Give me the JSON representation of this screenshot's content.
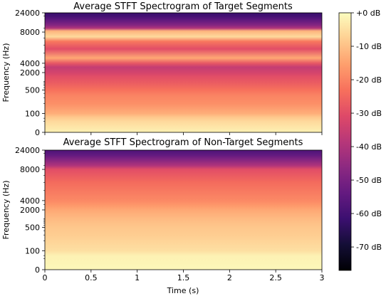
{
  "chart_data": [
    {
      "type": "heatmap",
      "title": "Average STFT Spectrogram of Target Segments",
      "xlabel": "",
      "ylabel": "Frequency (Hz)",
      "xlim": [
        0,
        3
      ],
      "ylim": [
        0,
        24000
      ],
      "y_scale": "symlog",
      "x_ticks": [],
      "y_ticks": [
        "0",
        "100",
        "500",
        "2000",
        "4000",
        "8000",
        "24000"
      ],
      "y_tick_values": [
        0,
        100,
        500,
        2000,
        4000,
        8000,
        24000
      ],
      "description_db_profile": [
        {
          "freq": 0,
          "db": -2
        },
        {
          "freq": 30,
          "db": -6
        },
        {
          "freq": 60,
          "db": -9
        },
        {
          "freq": 100,
          "db": -13
        },
        {
          "freq": 200,
          "db": -18
        },
        {
          "freq": 350,
          "db": -20
        },
        {
          "freq": 500,
          "db": -23
        },
        {
          "freq": 900,
          "db": -27
        },
        {
          "freq": 1500,
          "db": -30
        },
        {
          "freq": 2000,
          "db": -33
        },
        {
          "freq": 3000,
          "db": -36
        },
        {
          "freq": 4000,
          "db": -28
        },
        {
          "freq": 4500,
          "db": -14
        },
        {
          "freq": 5500,
          "db": -30
        },
        {
          "freq": 6500,
          "db": -22
        },
        {
          "freq": 7200,
          "db": -6
        },
        {
          "freq": 8500,
          "db": -12
        },
        {
          "freq": 10000,
          "db": -40
        },
        {
          "freq": 12000,
          "db": -48
        },
        {
          "freq": 16000,
          "db": -55
        },
        {
          "freq": 20000,
          "db": -60
        },
        {
          "freq": 24000,
          "db": -62
        }
      ]
    },
    {
      "type": "heatmap",
      "title": "Average STFT Spectrogram of Non-Target Segments",
      "xlabel": "Time (s)",
      "ylabel": "Frequency (Hz)",
      "xlim": [
        0,
        3
      ],
      "ylim": [
        0,
        24000
      ],
      "y_scale": "symlog",
      "x_ticks": [
        "0",
        "0.5",
        "1",
        "1.5",
        "2",
        "2.5",
        "3"
      ],
      "x_tick_values": [
        0,
        0.5,
        1,
        1.5,
        2,
        2.5,
        3
      ],
      "y_ticks": [
        "0",
        "100",
        "500",
        "2000",
        "4000",
        "8000",
        "24000"
      ],
      "y_tick_values": [
        0,
        100,
        500,
        2000,
        4000,
        8000,
        24000
      ],
      "description_db_profile": [
        {
          "freq": 0,
          "db": -1
        },
        {
          "freq": 50,
          "db": -2
        },
        {
          "freq": 100,
          "db": -5
        },
        {
          "freq": 300,
          "db": -8
        },
        {
          "freq": 500,
          "db": -9
        },
        {
          "freq": 1000,
          "db": -11
        },
        {
          "freq": 2000,
          "db": -14
        },
        {
          "freq": 3000,
          "db": -17
        },
        {
          "freq": 4000,
          "db": -19
        },
        {
          "freq": 6000,
          "db": -24
        },
        {
          "freq": 8000,
          "db": -30
        },
        {
          "freq": 10000,
          "db": -40
        },
        {
          "freq": 14000,
          "db": -48
        },
        {
          "freq": 18000,
          "db": -54
        },
        {
          "freq": 24000,
          "db": -58
        }
      ]
    }
  ],
  "colorbar": {
    "colormap": "magma",
    "min_db": -77,
    "max_db": 0,
    "tick_values": [
      0,
      -10,
      -20,
      -30,
      -40,
      -50,
      -60,
      -70
    ],
    "tick_labels": [
      "+0 dB",
      "-10 dB",
      "-20 dB",
      "-30 dB",
      "-40 dB",
      "-50 dB",
      "-60 dB",
      "-70 dB"
    ]
  }
}
